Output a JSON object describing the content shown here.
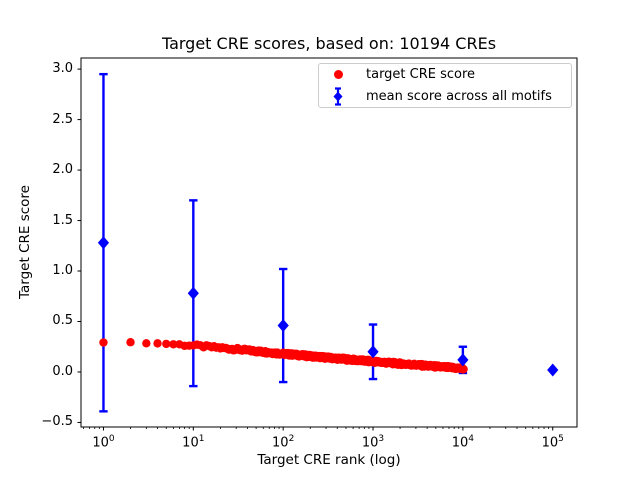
{
  "title": "Target CRE scores, based on: 10194 CREs",
  "colors": {
    "red": "#ff0000",
    "blue": "#0000ff",
    "axis": "#000000",
    "legend_border": "#cccccc",
    "background": "#ffffff"
  },
  "legend": {
    "items": [
      {
        "label": "target CRE score",
        "marker": "red-circle"
      },
      {
        "label": "mean score across all motifs",
        "marker": "blue-diamond-errorbar"
      }
    ]
  },
  "chart_data": {
    "type": "scatter",
    "title": "Target CRE scores, based on: 10194 CREs",
    "xlabel": "Target CRE rank (log)",
    "ylabel": "Target CRE score",
    "x_scale": "log",
    "grid": false,
    "legend_position": "upper right",
    "xlim_log10": [
      -0.25,
      5.27
    ],
    "ylim": [
      -0.545,
      3.11
    ],
    "x_ticks": [
      {
        "base": "10",
        "exp": "0"
      },
      {
        "base": "10",
        "exp": "1"
      },
      {
        "base": "10",
        "exp": "2"
      },
      {
        "base": "10",
        "exp": "3"
      },
      {
        "base": "10",
        "exp": "4"
      },
      {
        "base": "10",
        "exp": "5"
      }
    ],
    "x_minor_ticks_per_decade": [
      2,
      3,
      4,
      5,
      6,
      7,
      8,
      9
    ],
    "y_ticks": [
      {
        "value": 3.0,
        "label": "3.0"
      },
      {
        "value": 2.5,
        "label": "2.5"
      },
      {
        "value": 2.0,
        "label": "2.0"
      },
      {
        "value": 1.5,
        "label": "1.5"
      },
      {
        "value": 1.0,
        "label": "1.0"
      },
      {
        "value": 0.5,
        "label": "0.5"
      },
      {
        "value": 0.0,
        "label": "0.0"
      },
      {
        "value": -0.5,
        "label": "−0.5"
      }
    ],
    "series": [
      {
        "name": "target CRE score",
        "type": "scatter_curve",
        "color": "#ff0000",
        "marker": "circle",
        "n_points": 10194,
        "rank_range": [
          1,
          10194
        ],
        "anchors_log10rank_value": [
          [
            0.0,
            0.295
          ],
          [
            0.301,
            0.292
          ],
          [
            0.477,
            0.287
          ],
          [
            0.602,
            0.283
          ],
          [
            0.699,
            0.279
          ],
          [
            1.0,
            0.262
          ],
          [
            1.5,
            0.223
          ],
          [
            2.0,
            0.18
          ],
          [
            2.5,
            0.141
          ],
          [
            3.0,
            0.103
          ],
          [
            3.5,
            0.068
          ],
          [
            4.0,
            0.033
          ],
          [
            4.0083,
            0.031
          ]
        ],
        "band_half_width_value": 0.013
      },
      {
        "name": "mean score across all motifs",
        "type": "errorbar",
        "color": "#0000ff",
        "marker": "diamond",
        "x": [
          1,
          10,
          100,
          1000,
          10000,
          100000
        ],
        "y": [
          1.28,
          0.78,
          0.46,
          0.2,
          0.12,
          0.02
        ],
        "yerr": [
          1.67,
          0.92,
          0.56,
          0.27,
          0.13,
          0.0
        ]
      }
    ]
  }
}
